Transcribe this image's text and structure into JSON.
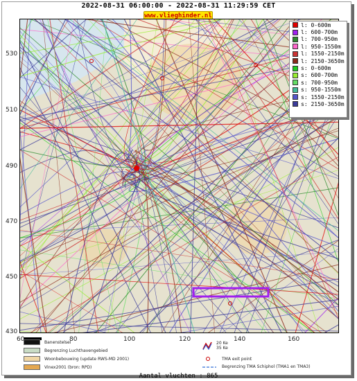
{
  "title": "2022-08-31 06:00:00 - 2022-08-31 11:29:59 CET",
  "site": "www.vlieghinder.nl",
  "y_ticks": [
    "530",
    "510",
    "490",
    "470",
    "450",
    "430"
  ],
  "x_ticks": [
    "60",
    "80",
    "100",
    "120",
    "140",
    "160"
  ],
  "legend": [
    {
      "label": "l: 0-600m",
      "color": "#e00000"
    },
    {
      "label": "l: 600-700m",
      "color": "#a020f0"
    },
    {
      "label": "l: 700-950m",
      "color": "#2e8b2e"
    },
    {
      "label": "l: 950-1550m",
      "color": "#ff66cc"
    },
    {
      "label": "l: 1550-2150m",
      "color": "#cc3333"
    },
    {
      "label": "l: 2150-3650m",
      "color": "#8b2a1a"
    },
    {
      "label": "s: 0-600m",
      "color": "#22cc22"
    },
    {
      "label": "s: 600-700m",
      "color": "#99ee33"
    },
    {
      "label": "s: 700-950m",
      "color": "#66dd66"
    },
    {
      "label": "s: 950-1550m",
      "color": "#44bb99"
    },
    {
      "label": "s: 1550-2150m",
      "color": "#5555cc"
    },
    {
      "label": "s: 2150-3650m",
      "color": "#3a3a99"
    }
  ],
  "footer": {
    "runway": "Banenstelsel",
    "airport_boundary": "Begrenzing Luchthavengebied",
    "housing": "Woonbebouwing (update RWS-MD 2001)",
    "vinex": "Vinex2001 (bron: RPD)",
    "noise_20": "20 Ke",
    "noise_35": "35 Ke",
    "tma_exit": "TMA exit point",
    "tma_boundary": "Begrenzing TMA Schiphol  (TMA1 en TMA3)"
  },
  "flight_count": "Aantal vluchten : 865"
}
